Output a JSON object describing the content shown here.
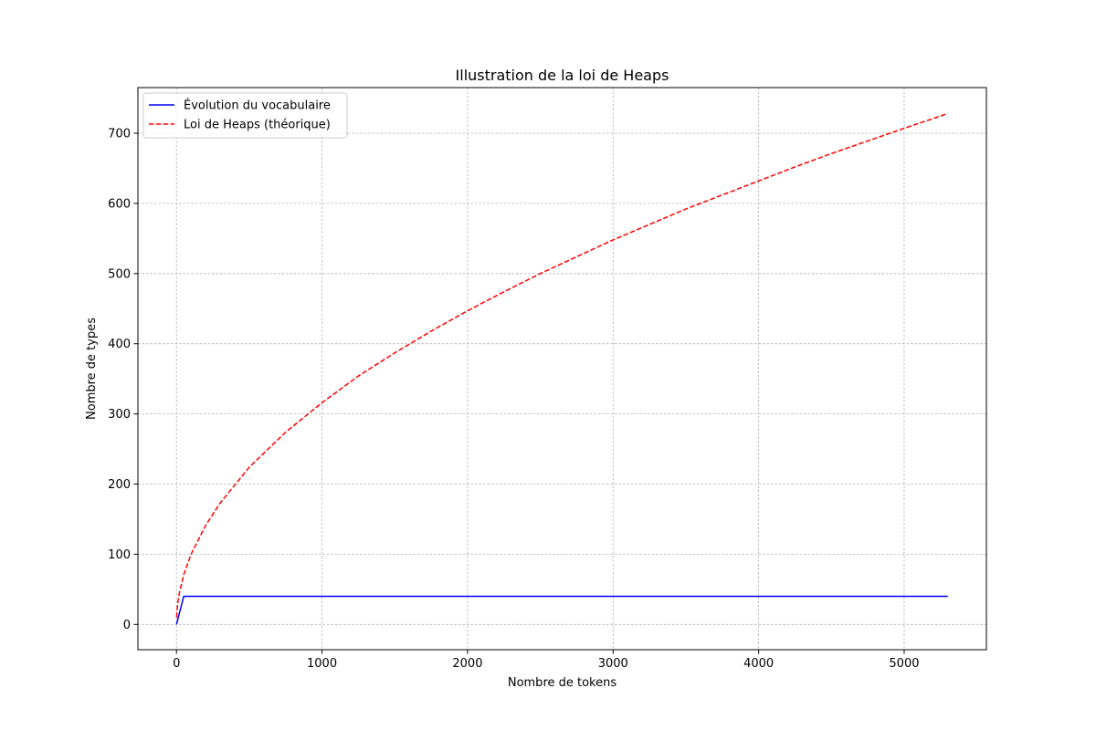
{
  "chart_data": {
    "type": "line",
    "title": "Illustration de la loi de Heaps",
    "xlabel": "Nombre de tokens",
    "ylabel": "Nombre de types",
    "xlim": [
      -265,
      5565
    ],
    "ylim": [
      -36,
      765
    ],
    "xticks": [
      0,
      1000,
      2000,
      3000,
      4000,
      5000
    ],
    "yticks": [
      0,
      100,
      200,
      300,
      400,
      500,
      600,
      700
    ],
    "grid": true,
    "legend_position": "upper left",
    "series": [
      {
        "name": "Évolution du vocabulaire",
        "color": "#0000ff",
        "style": "solid",
        "x": [
          0,
          50,
          100,
          500,
          1000,
          2000,
          3000,
          4000,
          5000,
          5300
        ],
        "y": [
          0,
          40,
          40,
          40,
          40,
          40,
          40,
          40,
          40,
          40
        ]
      },
      {
        "name": "Loi de Heaps (théorique)",
        "color": "#ff0000",
        "style": "dashed",
        "x": [
          1,
          5,
          10,
          20,
          50,
          100,
          200,
          300,
          500,
          750,
          1000,
          1250,
          1500,
          1750,
          2000,
          2250,
          2500,
          2750,
          3000,
          3250,
          3500,
          3750,
          4000,
          4250,
          4500,
          4750,
          5000,
          5300
        ],
        "y": [
          10,
          22,
          32,
          45,
          71,
          100,
          141,
          173,
          224,
          274,
          316,
          354,
          387,
          418,
          447,
          474,
          500,
          524,
          548,
          570,
          592,
          612,
          632,
          652,
          671,
          689,
          707,
          728
        ]
      }
    ]
  }
}
